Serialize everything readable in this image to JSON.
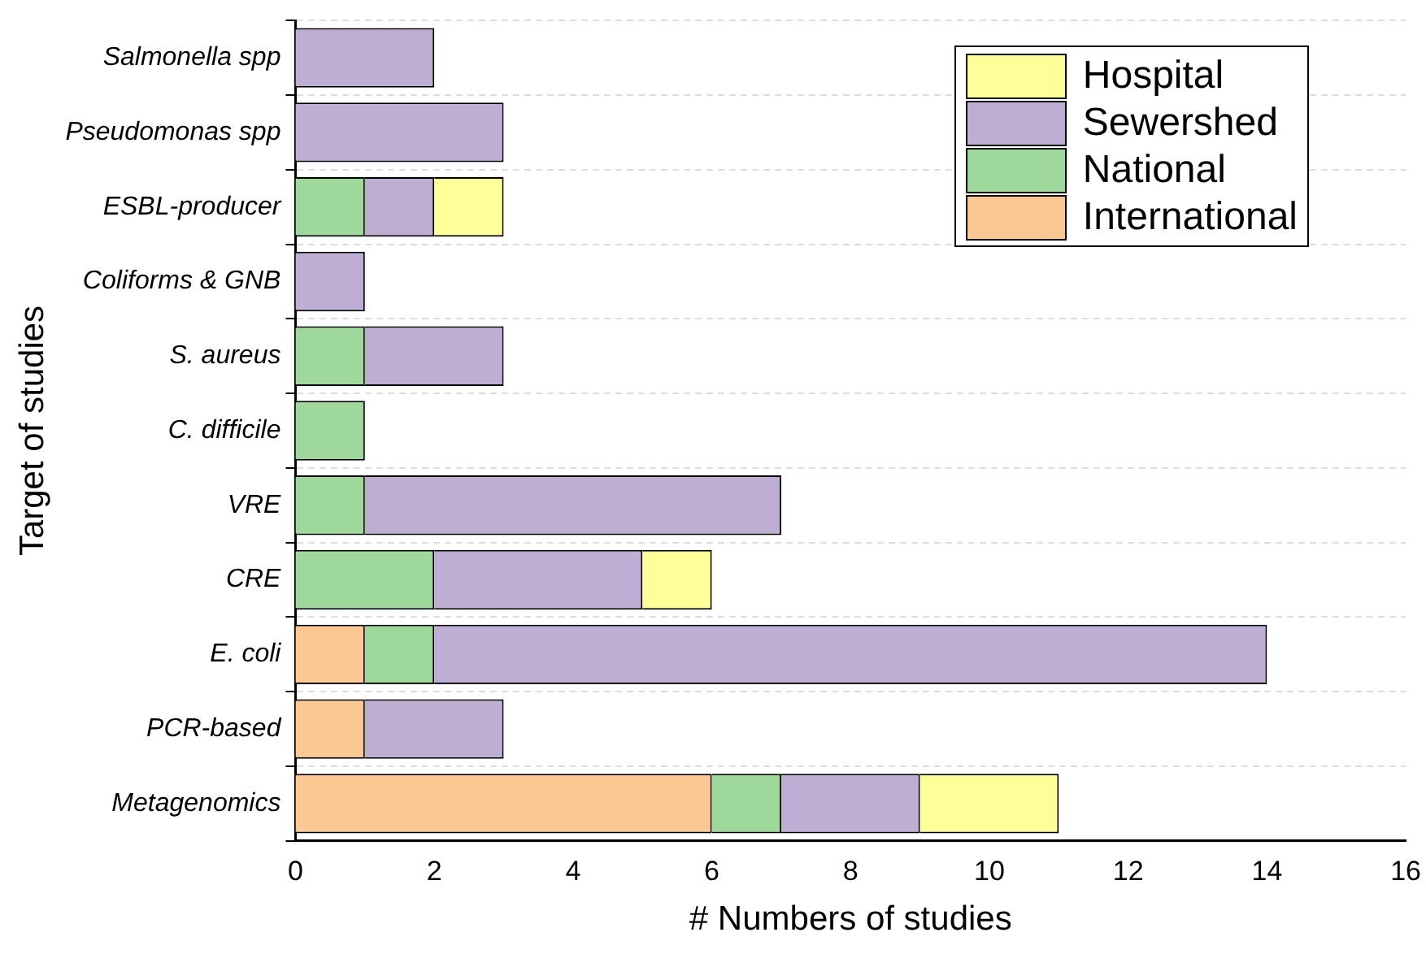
{
  "chart_data": {
    "type": "bar",
    "orientation": "horizontal",
    "stacked": true,
    "xlabel": "# Numbers of studies",
    "ylabel": "Target of studies",
    "categories": [
      "Salmonella spp",
      "Pseudomonas spp",
      "ESBL-producer",
      "Coliforms & GNB",
      "S. aureus",
      "C. difficile",
      "VRE",
      "CRE",
      "E. coli",
      "PCR-based",
      "Metagenomics"
    ],
    "series": [
      {
        "name": "International",
        "color": "#fbc893",
        "values": [
          null,
          null,
          null,
          null,
          null,
          null,
          null,
          null,
          1,
          1,
          6
        ]
      },
      {
        "name": "National",
        "color": "#9fd89b",
        "values": [
          null,
          null,
          1,
          null,
          1,
          1,
          1,
          2,
          1,
          null,
          1
        ]
      },
      {
        "name": "Sewershed",
        "color": "#bfaed4",
        "values": [
          2,
          3,
          1,
          1,
          2,
          null,
          6,
          3,
          12,
          2,
          2
        ]
      },
      {
        "name": "Hospital",
        "color": "#ffff99",
        "values": [
          null,
          null,
          1,
          null,
          null,
          null,
          null,
          1,
          null,
          null,
          2
        ]
      }
    ],
    "xlim": [
      0,
      16
    ],
    "xticks": [
      0,
      2,
      4,
      6,
      8,
      10,
      12,
      14,
      16
    ],
    "grid": "y",
    "legend": "top right"
  }
}
